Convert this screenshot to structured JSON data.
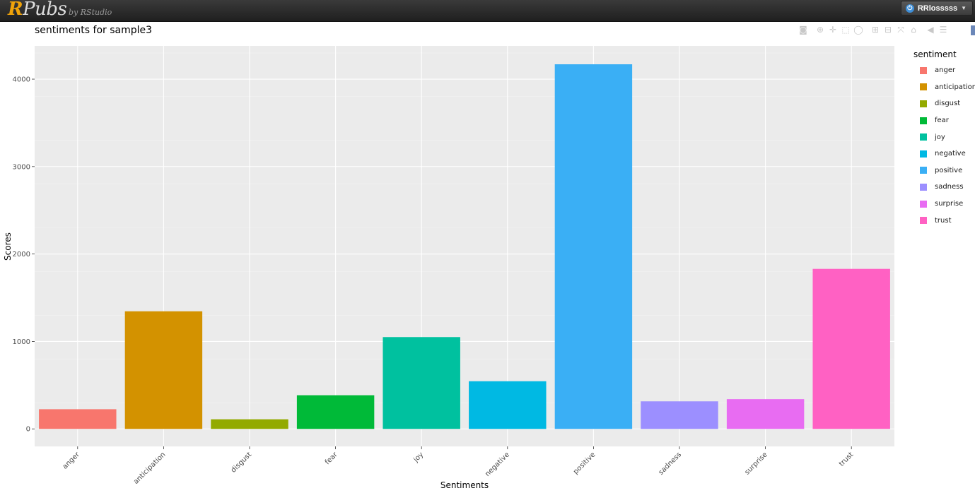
{
  "header": {
    "logo_r": "R",
    "logo_rest": "Pubs",
    "byline": "by RStudio",
    "user_name": "RRlosssss"
  },
  "icons": {
    "power": "power-icon",
    "modebar": [
      "camera-icon",
      "zoom-icon",
      "pan-icon",
      "box-select-icon",
      "lasso-icon",
      "zoom-in-icon",
      "zoom-out-icon",
      "autoscale-icon",
      "reset-axes-icon",
      "hover-closest-icon",
      "hover-compare-icon"
    ]
  },
  "chart_data": {
    "type": "bar",
    "title": "sentiments for sample3",
    "xlabel": "Sentiments",
    "ylabel": "Scores",
    "categories": [
      "anger",
      "anticipation",
      "disgust",
      "fear",
      "joy",
      "negative",
      "positive",
      "sadness",
      "surprise",
      "trust"
    ],
    "values": [
      225,
      1345,
      110,
      385,
      1050,
      545,
      4170,
      315,
      340,
      1830
    ],
    "colors": [
      "#F8766D",
      "#D39200",
      "#93AA00",
      "#00BA38",
      "#00C19F",
      "#00B9E3",
      "#3AAFF5",
      "#9C8FFF",
      "#E86CF2",
      "#FF61C3"
    ],
    "ylim": [
      -200,
      4380
    ],
    "yticks": [
      0,
      1000,
      2000,
      3000,
      4000
    ],
    "grid": true,
    "legend": {
      "title": "sentiment",
      "position": "right"
    }
  }
}
